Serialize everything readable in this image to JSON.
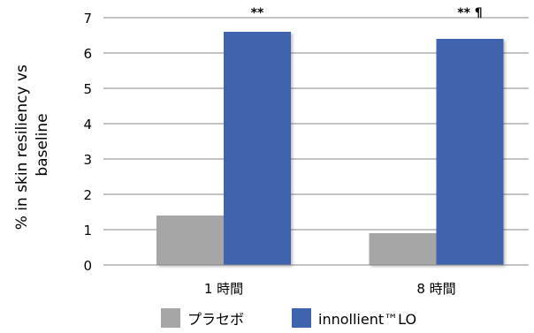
{
  "chart_data": {
    "type": "bar",
    "categories": [
      "1 時間",
      "8 時間"
    ],
    "series": [
      {
        "name": "プラセボ",
        "values": [
          1.4,
          0.9
        ],
        "color": "#a6a6a6"
      },
      {
        "name": "innollient™LO",
        "values": [
          6.6,
          6.4
        ],
        "color": "#3f63ae"
      }
    ],
    "annotations": [
      "**",
      "** ¶"
    ],
    "ylabel_lines": [
      "% in skin resiliency vs",
      "baseline"
    ],
    "xlabel": "",
    "ylim": [
      0,
      7
    ],
    "yticks": [
      0,
      1,
      2,
      3,
      4,
      5,
      6,
      7
    ],
    "grid": true,
    "legend_position": "bottom"
  }
}
